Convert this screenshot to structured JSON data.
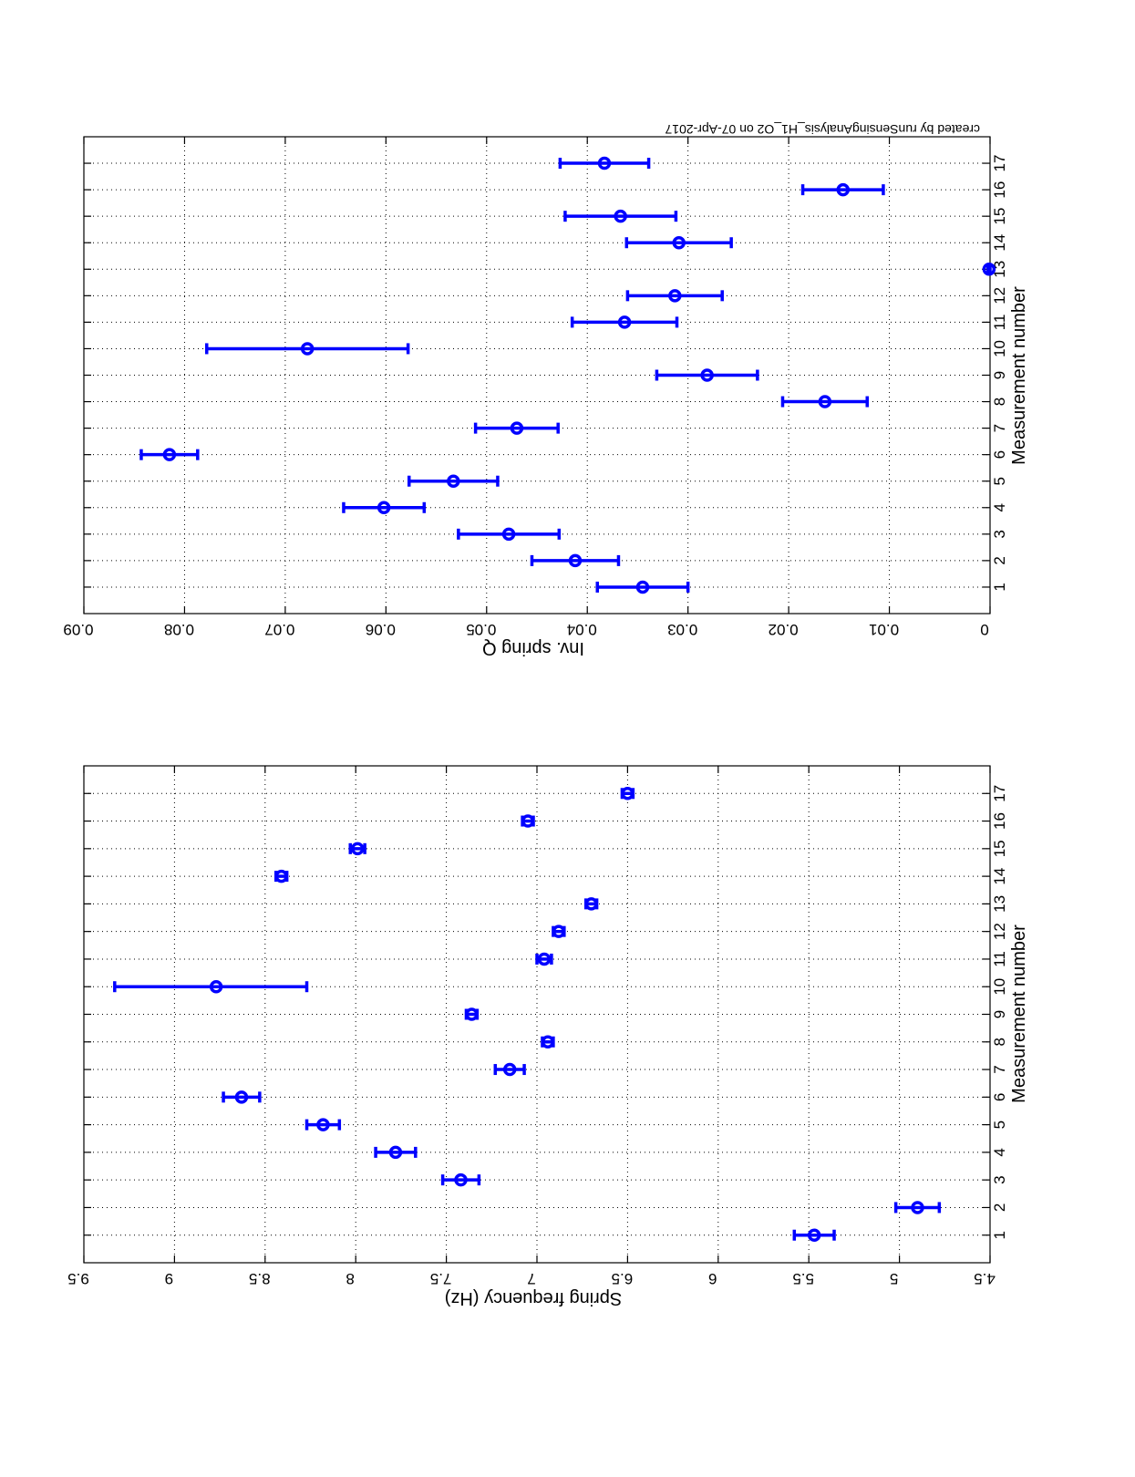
{
  "chart_data": [
    {
      "type": "scatter",
      "xlabel": "Measurement number",
      "ylabel": "Spring frequency (Hz)",
      "ylim": [
        4.5,
        9.5
      ],
      "y_ticks": [
        "4.5",
        "5",
        "5.5",
        "6",
        "6.5",
        "7",
        "7.5",
        "8",
        "8.5",
        "9",
        "9.5"
      ],
      "x_ticks": [
        "1",
        "2",
        "3",
        "4",
        "5",
        "6",
        "7",
        "8",
        "9",
        "10",
        "11",
        "12",
        "13",
        "14",
        "15",
        "16",
        "17"
      ],
      "xlim": [
        0,
        18
      ],
      "grid": true,
      "orientation": "rotated 90 degrees counter-clockwise",
      "x": [
        1,
        2,
        3,
        4,
        5,
        6,
        7,
        8,
        9,
        10,
        11,
        12,
        13,
        14,
        15,
        16,
        17
      ],
      "y": [
        5.47,
        4.9,
        7.42,
        7.78,
        8.18,
        8.63,
        7.15,
        6.94,
        7.36,
        8.77,
        6.96,
        6.88,
        6.7,
        8.41,
        7.99,
        7.05,
        6.5
      ],
      "err_low": [
        0.11,
        0.12,
        0.1,
        0.11,
        0.09,
        0.1,
        0.08,
        0.03,
        0.03,
        0.5,
        0.04,
        0.03,
        0.03,
        0.03,
        0.04,
        0.03,
        0.03
      ],
      "err_high": [
        0.11,
        0.12,
        0.1,
        0.11,
        0.09,
        0.1,
        0.08,
        0.03,
        0.03,
        0.56,
        0.04,
        0.03,
        0.03,
        0.03,
        0.04,
        0.03,
        0.03
      ],
      "color": "#0000ff",
      "marker": "circle"
    },
    {
      "type": "scatter",
      "xlabel": "Measurement number",
      "ylabel": "Inv. spring Q",
      "ylim": [
        0,
        0.09
      ],
      "y_ticks": [
        "0",
        "0.01",
        "0.02",
        "0.03",
        "0.04",
        "0.05",
        "0.06",
        "0.07",
        "0.08",
        "0.09"
      ],
      "x_ticks": [
        "1",
        "2",
        "3",
        "4",
        "5",
        "6",
        "7",
        "8",
        "9",
        "10",
        "11",
        "12",
        "13",
        "14",
        "15",
        "16",
        "17"
      ],
      "xlim": [
        0,
        18
      ],
      "grid": true,
      "orientation": "rotated 90 degrees counter-clockwise",
      "x": [
        1,
        2,
        3,
        4,
        5,
        6,
        7,
        8,
        9,
        10,
        11,
        12,
        13,
        14,
        15,
        16,
        17
      ],
      "y": [
        0.0345,
        0.0412,
        0.0478,
        0.0602,
        0.0533,
        0.0815,
        0.047,
        0.0164,
        0.0281,
        0.0678,
        0.0363,
        0.0313,
        0.0001,
        0.0309,
        0.0367,
        0.0146,
        0.0383
      ],
      "err_low": [
        0.0045,
        0.0043,
        0.005,
        0.004,
        0.0044,
        0.0028,
        0.0041,
        0.0042,
        0.005,
        0.01,
        0.0052,
        0.0047,
        0.0001,
        0.0052,
        0.0055,
        0.004,
        0.0044
      ],
      "err_high": [
        0.0045,
        0.0043,
        0.005,
        0.004,
        0.0044,
        0.0028,
        0.0041,
        0.0042,
        0.005,
        0.01,
        0.0052,
        0.0047,
        0.0001,
        0.0052,
        0.0055,
        0.004,
        0.0044
      ],
      "color": "#0000ff",
      "marker": "circle"
    }
  ],
  "footer_note": "created by runSensingAnalysis_H1_O2 on 07-Apr-2017"
}
